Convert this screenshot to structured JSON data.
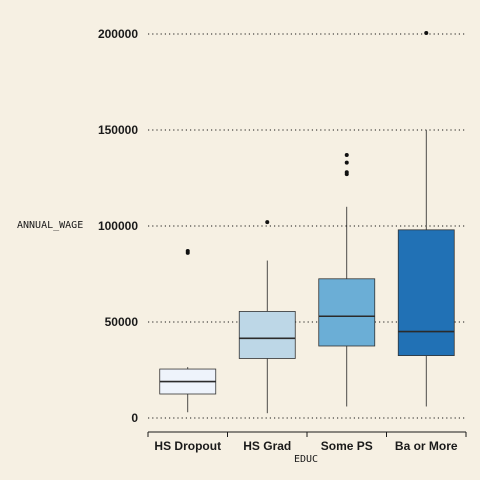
{
  "chart_data": {
    "type": "boxplot",
    "title": "",
    "xlabel": "EDUC",
    "ylabel": "ANNUAL_WAGE",
    "ylim": [
      0,
      200000
    ],
    "y_ticks": [
      0,
      50000,
      100000,
      150000,
      200000
    ],
    "grid": true,
    "grid_axis": "y",
    "categories": [
      "HS Dropout",
      "HS Grad",
      "Some PS",
      "Ba or More"
    ],
    "boxes": [
      {
        "category": "HS Dropout",
        "min": 3000,
        "q1": 12500,
        "median": 19000,
        "q3": 25500,
        "max": 26500,
        "outliers": [
          86000,
          87000
        ],
        "color": "#eef3fb"
      },
      {
        "category": "HS Grad",
        "min": 2500,
        "q1": 31000,
        "median": 41500,
        "q3": 55500,
        "max": 82000,
        "outliers": [
          102000
        ],
        "color": "#bdd7e7"
      },
      {
        "category": "Some PS",
        "min": 6000,
        "q1": 37500,
        "median": 53000,
        "q3": 72500,
        "max": 110000,
        "outliers": [
          127000,
          128000,
          133000,
          137000
        ],
        "color": "#6baed6"
      },
      {
        "category": "Ba or More",
        "min": 6000,
        "q1": 32500,
        "median": 45000,
        "q3": 98000,
        "max": 150000,
        "outliers": [
          200500
        ],
        "color": "#2171b5"
      }
    ]
  }
}
